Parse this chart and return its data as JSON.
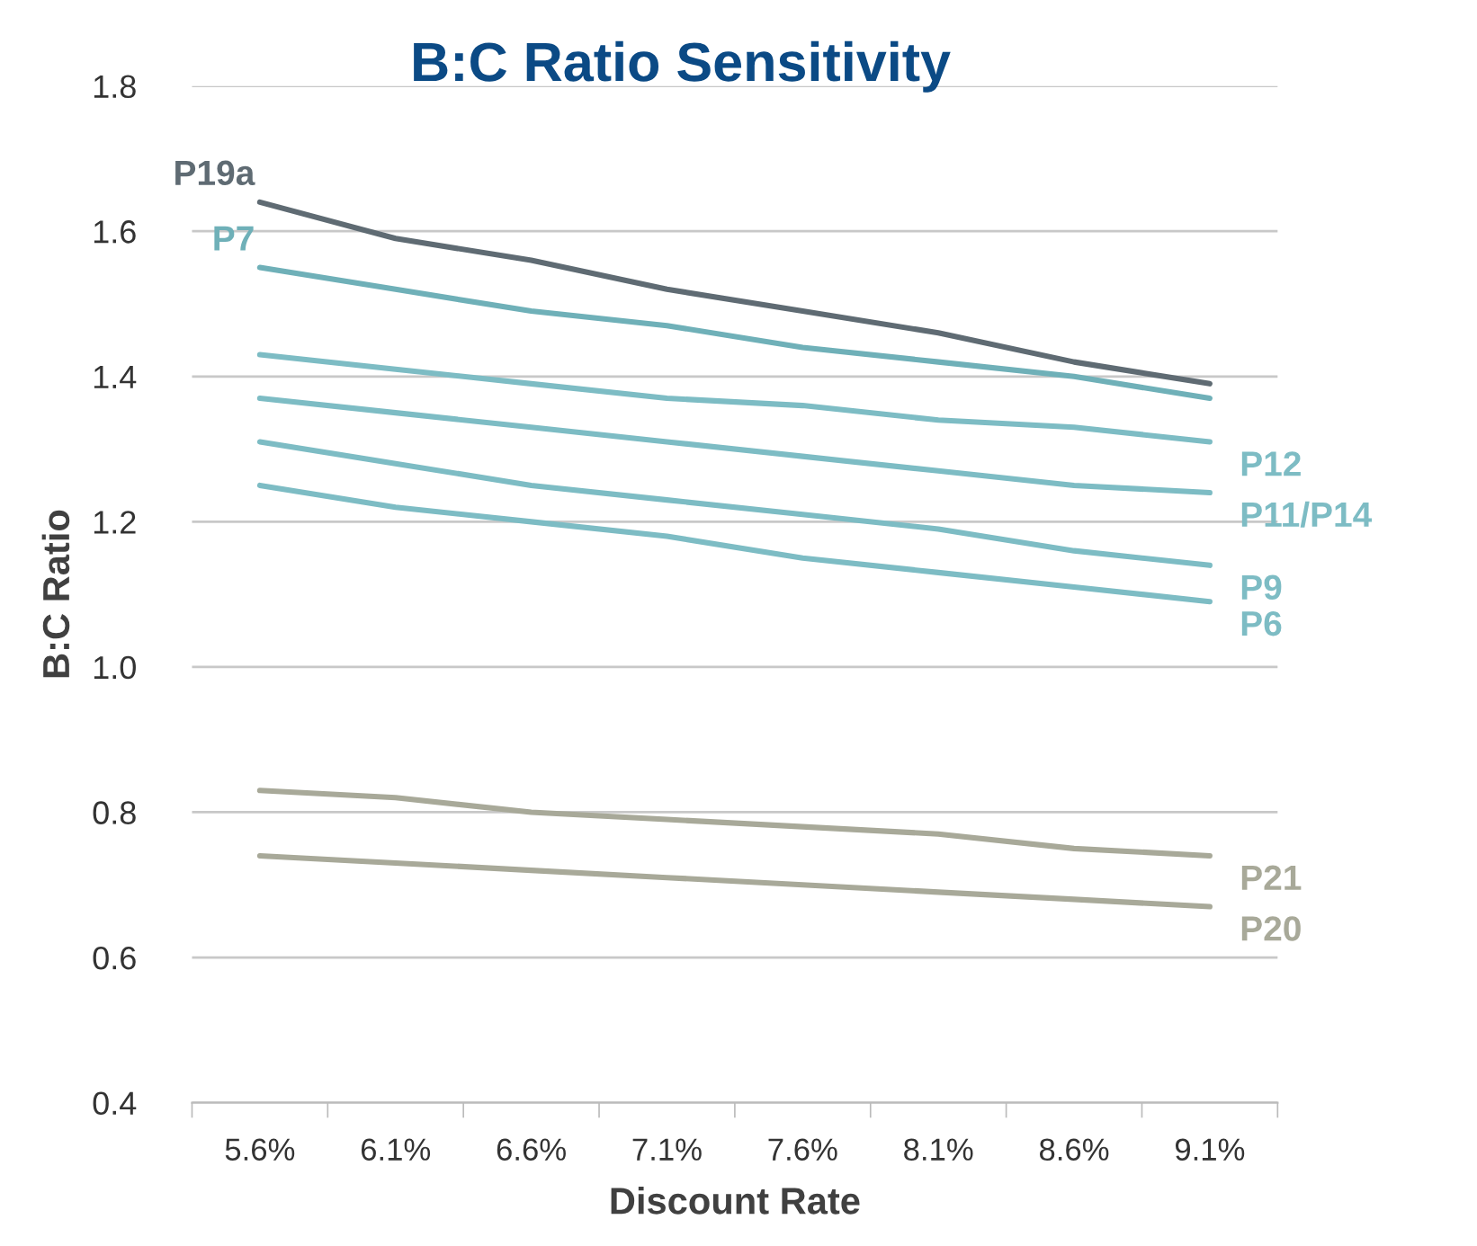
{
  "chart_data": {
    "type": "line",
    "title": "B:C Ratio Sensitivity",
    "xlabel": "Discount Rate",
    "ylabel": "B:C Ratio",
    "categories": [
      "5.6%",
      "6.1%",
      "6.6%",
      "7.1%",
      "7.6%",
      "8.1%",
      "8.6%",
      "9.1%"
    ],
    "series": [
      {
        "name": "P19a",
        "color": "#5f6b73",
        "values": [
          1.64,
          1.59,
          1.56,
          1.52,
          1.49,
          1.46,
          1.42,
          1.39
        ]
      },
      {
        "name": "P7",
        "color": "#6fb0b8",
        "values": [
          1.55,
          1.52,
          1.49,
          1.47,
          1.44,
          1.42,
          1.4,
          1.37
        ]
      },
      {
        "name": "P12",
        "color": "#7dbcc4",
        "values": [
          1.43,
          1.41,
          1.39,
          1.37,
          1.36,
          1.34,
          1.33,
          1.31
        ]
      },
      {
        "name": "P11/P14",
        "color": "#7dbcc4",
        "values": [
          1.37,
          1.35,
          1.33,
          1.31,
          1.29,
          1.27,
          1.25,
          1.24
        ]
      },
      {
        "name": "P9",
        "color": "#7dbcc4",
        "values": [
          1.31,
          1.28,
          1.25,
          1.23,
          1.21,
          1.19,
          1.16,
          1.14
        ]
      },
      {
        "name": "P6",
        "color": "#7dbcc4",
        "values": [
          1.25,
          1.22,
          1.2,
          1.18,
          1.15,
          1.13,
          1.11,
          1.09
        ]
      },
      {
        "name": "P21",
        "color": "#a8a999",
        "values": [
          0.83,
          0.82,
          0.8,
          0.79,
          0.78,
          0.77,
          0.75,
          0.74
        ]
      },
      {
        "name": "P20",
        "color": "#a8a999",
        "values": [
          0.74,
          0.73,
          0.72,
          0.71,
          0.7,
          0.69,
          0.68,
          0.67
        ]
      }
    ],
    "ylim": [
      0.4,
      1.8
    ],
    "yticks": [
      {
        "value": 0.4,
        "label": "0.4"
      },
      {
        "value": 0.6,
        "label": "0.6"
      },
      {
        "value": 0.8,
        "label": "0.8"
      },
      {
        "value": 1.0,
        "label": "1.0"
      },
      {
        "value": 1.2,
        "label": "1.2"
      },
      {
        "value": 1.4,
        "label": "1.4"
      },
      {
        "value": 1.6,
        "label": "1.6"
      },
      {
        "value": 1.8,
        "label": "1.8"
      }
    ],
    "grid": "y",
    "legend": false
  }
}
